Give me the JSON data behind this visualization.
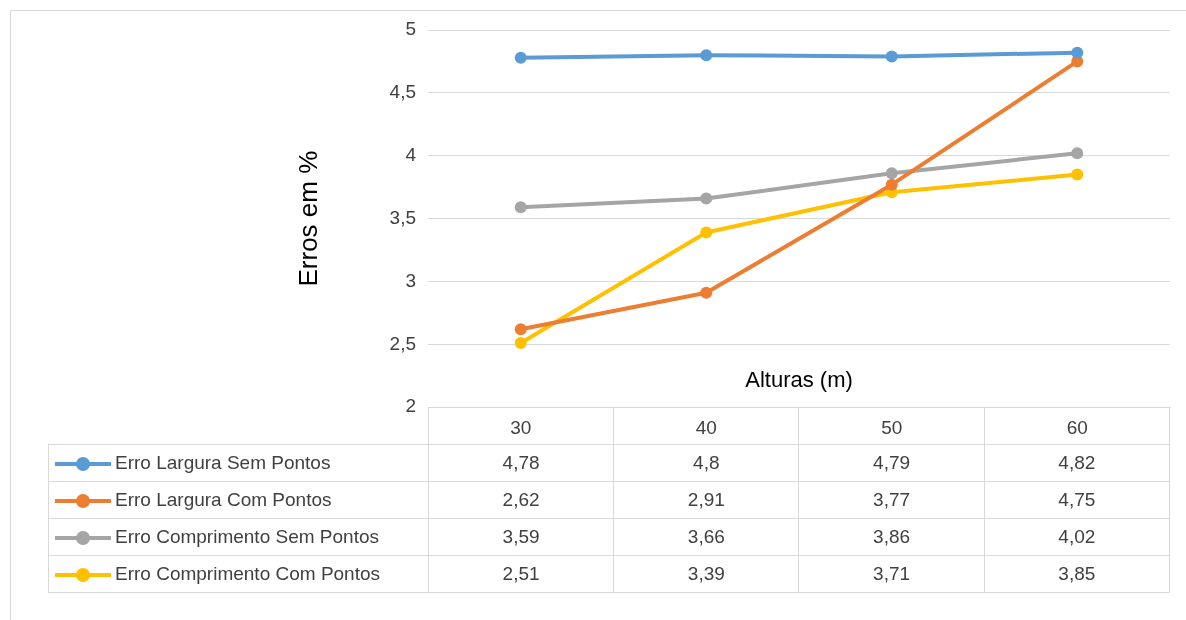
{
  "chart_data": {
    "type": "line",
    "xlabel": "Alturas (m)",
    "ylabel": "Erros em %",
    "categories": [
      "30",
      "40",
      "50",
      "60"
    ],
    "series": [
      {
        "name": "Erro Largura Sem Pontos",
        "color": "#5b9bd5",
        "values": [
          4.78,
          4.8,
          4.79,
          4.82
        ],
        "value_labels": [
          "4,78",
          "4,8",
          "4,79",
          "4,82"
        ]
      },
      {
        "name": "Erro Largura Com Pontos",
        "color": "#ed7d31",
        "values": [
          2.62,
          2.91,
          3.77,
          4.75
        ],
        "value_labels": [
          "2,62",
          "2,91",
          "3,77",
          "4,75"
        ]
      },
      {
        "name": "Erro Comprimento Sem Pontos",
        "color": "#a5a5a5",
        "values": [
          3.59,
          3.66,
          3.86,
          4.02
        ],
        "value_labels": [
          "3,59",
          "3,66",
          "3,86",
          "4,02"
        ]
      },
      {
        "name": "Erro Comprimento Com Pontos",
        "color": "#ffc000",
        "values": [
          2.51,
          3.39,
          3.71,
          3.85
        ],
        "value_labels": [
          "2,51",
          "3,39",
          "3,71",
          "3,85"
        ]
      }
    ],
    "ylim": [
      2,
      5
    ],
    "yticks": [
      2,
      {
        "value": 2.5,
        "label": "2,5"
      },
      3,
      {
        "value": 3.5,
        "label": "3,5"
      },
      4,
      {
        "value": 4.5,
        "label": "4,5"
      },
      5
    ],
    "grid": "y",
    "legend": "bottom",
    "marker": "circle",
    "line_style": "solid"
  }
}
